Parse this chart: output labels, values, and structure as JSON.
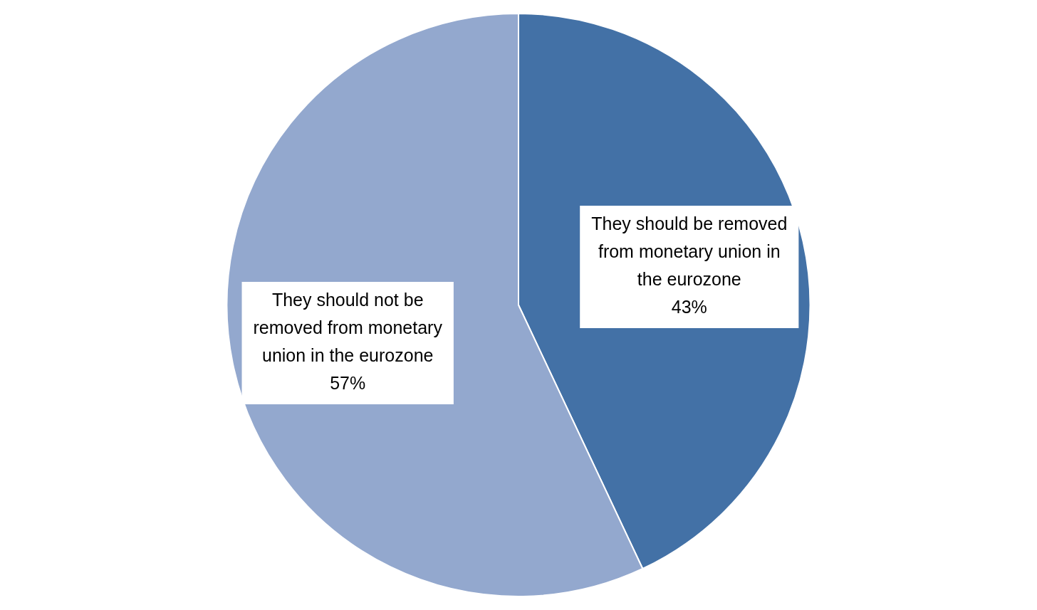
{
  "chart_data": {
    "type": "pie",
    "categories": [
      "They should be removed from monetary union in the eurozone",
      "They should not be removed from monetary union in the eurozone"
    ],
    "values": [
      43,
      57
    ],
    "value_labels": [
      "43%",
      "57%"
    ],
    "colors": [
      "#4371a6",
      "#93a8ce"
    ],
    "legend": false
  }
}
